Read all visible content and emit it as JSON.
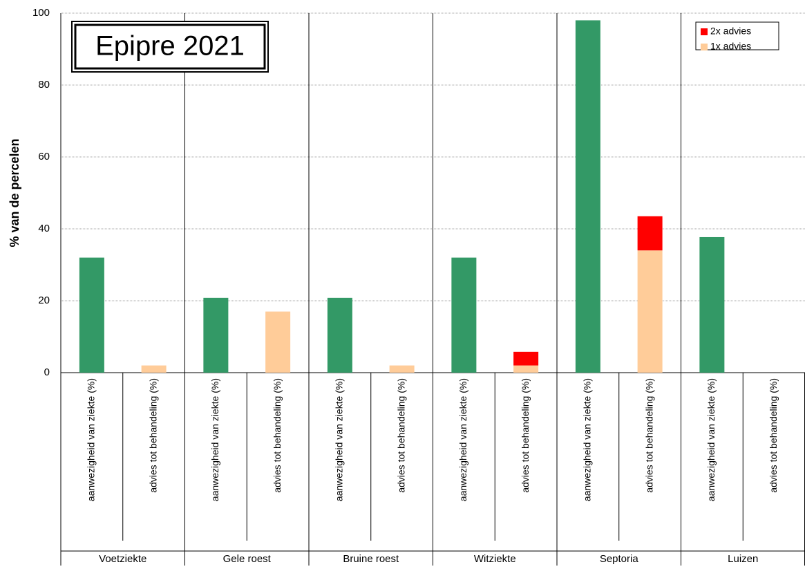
{
  "chart_data": {
    "type": "stacked-bar",
    "title": "Epipre 2021",
    "y_label": "% van de percelen",
    "groups": [
      "Voetziekte",
      "Gele roest",
      "Bruine roest",
      "Witziekte",
      "Septoria",
      "Luizen"
    ],
    "categories": [
      "aanwezigheid van ziekte (%)",
      "advies tot behandeling (%)",
      "aanwezigheid van ziekte (%)",
      "advies tot behandeling (%)",
      "aanwezigheid van ziekte (%)",
      "advies tot behandeling (%)",
      "aanwezigheid van ziekte (%)",
      "advies tot behandeling (%)",
      "aanwezigheid van ziekte (%)",
      "advies tot behandeling (%)",
      "aanwezigheid van ziekte (%)",
      "advies tot behandeling (%)"
    ],
    "series": [
      {
        "color": "#339966",
        "values": [
          32,
          null,
          20.8,
          null,
          20.8,
          null,
          32,
          null,
          98,
          null,
          37.7,
          null
        ]
      },
      {
        "name": "1x advies",
        "color": "#ffcc99",
        "values": [
          null,
          2,
          null,
          17,
          null,
          2,
          null,
          2,
          null,
          34,
          null,
          null
        ]
      },
      {
        "name": "2x advies",
        "color": "#ff0000",
        "values": [
          null,
          null,
          null,
          null,
          null,
          null,
          null,
          3.8,
          null,
          9.5,
          null,
          null
        ]
      }
    ],
    "ylim": [
      0,
      100
    ],
    "yticks": [
      0,
      20,
      40,
      60,
      80,
      100
    ],
    "grid": true,
    "legend": "top-right"
  }
}
